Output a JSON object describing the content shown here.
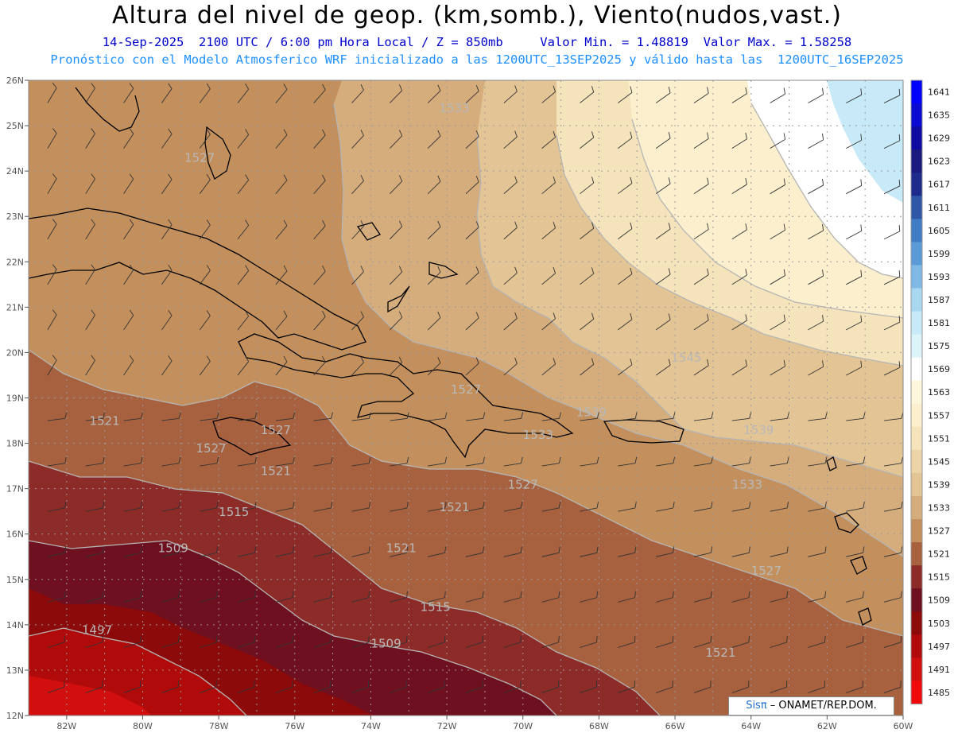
{
  "title": "Altura del nivel de geop. (km,somb.), Viento(nudos,vast.)",
  "subtitle1": "14-Sep-2025  2100 UTC / 6:00 pm Hora Local / Z = 850mb     Valor Min. = 1.48819  Valor Max. = 1.58258",
  "subtitle2": "Pronóstico con el Modelo Atmosferico WRF inicializado a las 1200UTC_13SEP2025 y válido hasta las  1200UTC_16SEP2025",
  "credit": {
    "brand": "Sisπ",
    "text": " – ONAMET/REP.DOM."
  },
  "axes": {
    "lat_labels": [
      "26N",
      "25N",
      "24N",
      "23N",
      "22N",
      "21N",
      "20N",
      "19N",
      "18N",
      "17N",
      "16N",
      "15N",
      "14N",
      "13N",
      "12N"
    ],
    "lon_labels": [
      "82W",
      "80W",
      "78W",
      "76W",
      "74W",
      "72W",
      "70W",
      "68W",
      "66W",
      "64W",
      "62W",
      "60W"
    ]
  },
  "colorbar": {
    "levels": [
      "1641",
      "1635",
      "1629",
      "1623",
      "1617",
      "1611",
      "1605",
      "1599",
      "1593",
      "1587",
      "1581",
      "1575",
      "1569",
      "1563",
      "1557",
      "1551",
      "1545",
      "1539",
      "1533",
      "1527",
      "1521",
      "1515",
      "1509",
      "1503",
      "1497",
      "1491",
      "1485"
    ],
    "colors": [
      "#0000ff",
      "#0a0ad2",
      "#0f0aa0",
      "#1a1a80",
      "#1e2a8c",
      "#2f57a8",
      "#3f7cc4",
      "#5a9ad6",
      "#80b8e6",
      "#a8d8f0",
      "#c8eaf8",
      "#ddf4fb",
      "#ffffff",
      "#fff6dc",
      "#fbefcd",
      "#f5e3bc",
      "#ecd4a6",
      "#e3c495",
      "#d5ac7c",
      "#c3905d",
      "#a8613e",
      "#8c2b28",
      "#6e1020",
      "#8c0a0a",
      "#b00a0a",
      "#d20f0f",
      "#f00a0a"
    ]
  },
  "contour_labels": [
    {
      "text": "1533",
      "lon": -71.8,
      "lat": 25.3
    },
    {
      "text": "1527",
      "lon": -78.5,
      "lat": 24.2
    },
    {
      "text": "1545",
      "lon": -65.7,
      "lat": 19.8
    },
    {
      "text": "1539",
      "lon": -63.8,
      "lat": 18.2
    },
    {
      "text": "1533",
      "lon": -64.1,
      "lat": 17.0
    },
    {
      "text": "1539",
      "lon": -68.2,
      "lat": 18.6
    },
    {
      "text": "1533",
      "lon": -69.6,
      "lat": 18.1
    },
    {
      "text": "1527",
      "lon": -71.5,
      "lat": 19.1
    },
    {
      "text": "1521",
      "lon": -81.0,
      "lat": 18.4
    },
    {
      "text": "1527",
      "lon": -76.5,
      "lat": 18.2
    },
    {
      "text": "1527",
      "lon": -78.2,
      "lat": 17.8
    },
    {
      "text": "1521",
      "lon": -76.5,
      "lat": 17.3
    },
    {
      "text": "1527",
      "lon": -70.0,
      "lat": 17.0
    },
    {
      "text": "1521",
      "lon": -71.8,
      "lat": 16.5
    },
    {
      "text": "1515",
      "lon": -77.6,
      "lat": 16.4
    },
    {
      "text": "1509",
      "lon": -79.2,
      "lat": 15.6
    },
    {
      "text": "1521",
      "lon": -73.2,
      "lat": 15.6
    },
    {
      "text": "1515",
      "lon": -72.3,
      "lat": 14.3
    },
    {
      "text": "1509",
      "lon": -73.6,
      "lat": 13.5
    },
    {
      "text": "1497",
      "lon": -81.2,
      "lat": 13.8
    },
    {
      "text": "1527",
      "lon": -63.6,
      "lat": 15.1
    },
    {
      "text": "1521",
      "lon": -64.8,
      "lat": 13.3
    }
  ]
}
